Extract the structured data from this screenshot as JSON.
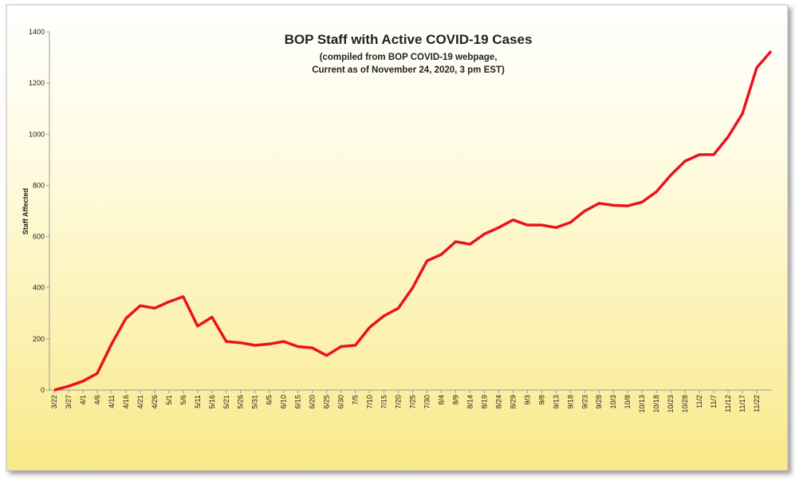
{
  "chart_data": {
    "type": "line",
    "title": "BOP Staff with Active COVID-19 Cases",
    "subtitle": [
      "(compiled from BOP COVID-19 webpage,",
      "Current as of November 24, 2020, 3 pm EST)"
    ],
    "y_label": "Staff Affected",
    "categories": [
      "3/22",
      "3/27",
      "4/1",
      "4/6",
      "4/11",
      "4/16",
      "4/21",
      "4/26",
      "5/1",
      "5/6",
      "5/11",
      "5/16",
      "5/21",
      "5/26",
      "5/31",
      "6/5",
      "6/10",
      "6/15",
      "6/20",
      "6/25",
      "6/30",
      "7/5",
      "7/10",
      "7/15",
      "7/20",
      "7/25",
      "7/30",
      "8/4",
      "8/9",
      "8/14",
      "8/19",
      "8/24",
      "8/29",
      "9/3",
      "9/8",
      "9/13",
      "9/18",
      "9/23",
      "9/28",
      "10/3",
      "10/8",
      "10/13",
      "10/18",
      "10/23",
      "10/28",
      "11/2",
      "11/7",
      "11/12",
      "11/17",
      "11/22",
      null
    ],
    "series": [
      {
        "name": "Staff Affected",
        "color": "#e8141c",
        "values": [
          0,
          15,
          35,
          65,
          180,
          280,
          330,
          320,
          345,
          365,
          250,
          285,
          190,
          185,
          175,
          180,
          190,
          170,
          165,
          135,
          170,
          175,
          245,
          290,
          320,
          400,
          505,
          530,
          580,
          570,
          610,
          635,
          665,
          645,
          645,
          635,
          655,
          700,
          730,
          722,
          720,
          735,
          775,
          840,
          895,
          920,
          920,
          990,
          1080,
          1260,
          1325
        ]
      }
    ],
    "ylim": [
      0,
      1400
    ],
    "yticks": [
      0,
      200,
      400,
      600,
      800,
      1000,
      1200,
      1400
    ],
    "grid": false
  }
}
